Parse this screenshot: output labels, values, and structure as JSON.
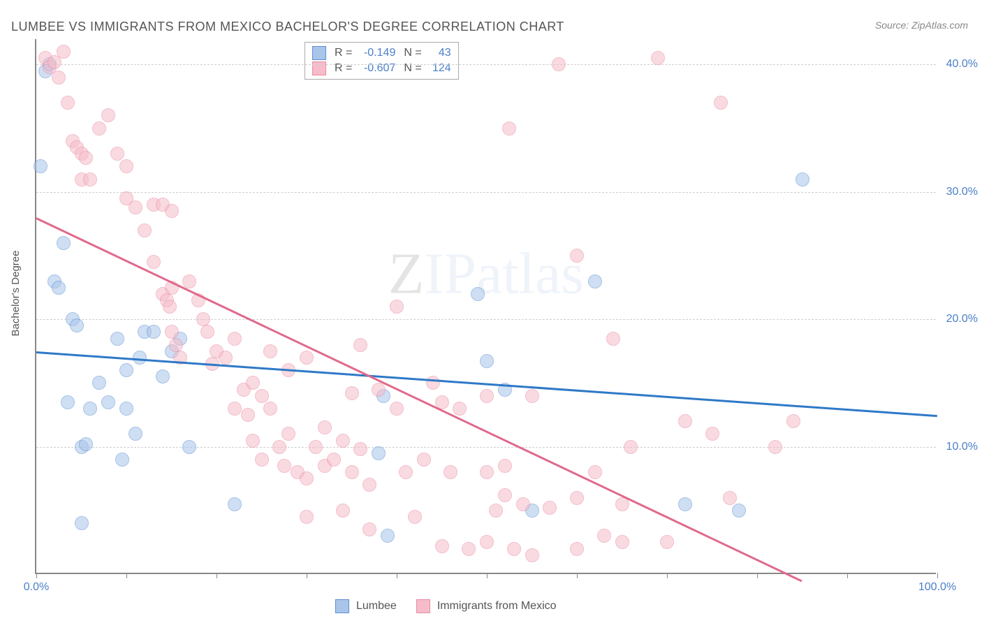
{
  "title": "LUMBEE VS IMMIGRANTS FROM MEXICO BACHELOR'S DEGREE CORRELATION CHART",
  "source": "Source: ZipAtlas.com",
  "y_axis_label": "Bachelor's Degree",
  "watermark": {
    "z": "Z",
    "ip": "IP",
    "atlas": "atlas"
  },
  "chart": {
    "type": "scatter",
    "xlim": [
      0,
      100
    ],
    "ylim": [
      0,
      42
    ],
    "x_ticks": [
      0,
      10,
      20,
      30,
      40,
      50,
      60,
      70,
      80,
      90,
      100
    ],
    "x_tick_labels": {
      "0": "0.0%",
      "100": "100.0%"
    },
    "y_gridlines": [
      10,
      20,
      30,
      40
    ],
    "y_tick_labels": [
      "10.0%",
      "20.0%",
      "30.0%",
      "40.0%"
    ],
    "background_color": "#ffffff",
    "grid_color": "#cfcfcf",
    "axis_color": "#888888",
    "marker_size": 20,
    "series": [
      {
        "name": "Lumbee",
        "color_fill": "#a9c5ea",
        "color_stroke": "#5e8fd4",
        "R": "-0.149",
        "N": "43",
        "trend": {
          "x1": 0,
          "y1": 17.5,
          "x2": 100,
          "y2": 12.5,
          "color": "#2e79c7",
          "width": 2.5
        },
        "points": [
          [
            0.5,
            32
          ],
          [
            1,
            39.5
          ],
          [
            1.5,
            40
          ],
          [
            2,
            23
          ],
          [
            2.5,
            22.5
          ],
          [
            3,
            26
          ],
          [
            3.5,
            13.5
          ],
          [
            4,
            20
          ],
          [
            4.5,
            19.5
          ],
          [
            5,
            10
          ],
          [
            5.5,
            10.2
          ],
          [
            5,
            4
          ],
          [
            6,
            13
          ],
          [
            7,
            15
          ],
          [
            8,
            13.5
          ],
          [
            9,
            18.5
          ],
          [
            9.5,
            9
          ],
          [
            10,
            16
          ],
          [
            10,
            13
          ],
          [
            11,
            11
          ],
          [
            11.5,
            17
          ],
          [
            12,
            19
          ],
          [
            13,
            19
          ],
          [
            15,
            17.5
          ],
          [
            16,
            18.5
          ],
          [
            17,
            10
          ],
          [
            14,
            15.5
          ],
          [
            22,
            5.5
          ],
          [
            38,
            9.5
          ],
          [
            38.5,
            14
          ],
          [
            39,
            3
          ],
          [
            49,
            22
          ],
          [
            50,
            16.7
          ],
          [
            52,
            14.5
          ],
          [
            55,
            5
          ],
          [
            62,
            23
          ],
          [
            72,
            5.5
          ],
          [
            78,
            5
          ],
          [
            85,
            31
          ]
        ]
      },
      {
        "name": "Immigrants from Mexico",
        "color_fill": "#f6bcc9",
        "color_stroke": "#e88ba4",
        "R": "-0.607",
        "N": "124",
        "trend": {
          "x1": 0,
          "y1": 28,
          "x2": 85,
          "y2": -0.5,
          "color": "#e06a8b",
          "width": 2.5
        },
        "points": [
          [
            1,
            40.5
          ],
          [
            1.5,
            39.8
          ],
          [
            2,
            40.2
          ],
          [
            2.5,
            39
          ],
          [
            3,
            41
          ],
          [
            3.5,
            37
          ],
          [
            4,
            34
          ],
          [
            4.5,
            33.5
          ],
          [
            5,
            33
          ],
          [
            5.5,
            32.7
          ],
          [
            5,
            31
          ],
          [
            6,
            31
          ],
          [
            7,
            35
          ],
          [
            8,
            36
          ],
          [
            9,
            33
          ],
          [
            10,
            32
          ],
          [
            10,
            29.5
          ],
          [
            11,
            28.8
          ],
          [
            12,
            27
          ],
          [
            13,
            24.5
          ],
          [
            14,
            22
          ],
          [
            14.5,
            21.5
          ],
          [
            14.8,
            21
          ],
          [
            15,
            22.5
          ],
          [
            15,
            19
          ],
          [
            15.5,
            18
          ],
          [
            16,
            17
          ],
          [
            13,
            29
          ],
          [
            14,
            29
          ],
          [
            15,
            28.5
          ],
          [
            17,
            23
          ],
          [
            18,
            21.5
          ],
          [
            18.5,
            20
          ],
          [
            19,
            19
          ],
          [
            19.5,
            16.5
          ],
          [
            20,
            17.5
          ],
          [
            21,
            17
          ],
          [
            22,
            18.5
          ],
          [
            22,
            13
          ],
          [
            23,
            14.5
          ],
          [
            23.5,
            12.5
          ],
          [
            24,
            15
          ],
          [
            24,
            10.5
          ],
          [
            25,
            14
          ],
          [
            25,
            9
          ],
          [
            26,
            17.5
          ],
          [
            26,
            13
          ],
          [
            27,
            10
          ],
          [
            27.5,
            8.5
          ],
          [
            28,
            16
          ],
          [
            28,
            11
          ],
          [
            29,
            8
          ],
          [
            30,
            17
          ],
          [
            30,
            7.5
          ],
          [
            30,
            4.5
          ],
          [
            31,
            10
          ],
          [
            32,
            11.5
          ],
          [
            32,
            8.5
          ],
          [
            33,
            9
          ],
          [
            34,
            10.5
          ],
          [
            34,
            5
          ],
          [
            35,
            8
          ],
          [
            35,
            14.2
          ],
          [
            36,
            18
          ],
          [
            36,
            9.8
          ],
          [
            37,
            7
          ],
          [
            37,
            3.5
          ],
          [
            38,
            14.5
          ],
          [
            40,
            21
          ],
          [
            40,
            13
          ],
          [
            41,
            8
          ],
          [
            42,
            4.5
          ],
          [
            43,
            9
          ],
          [
            44,
            15
          ],
          [
            45,
            13.5
          ],
          [
            45,
            2.2
          ],
          [
            46,
            8
          ],
          [
            47,
            13
          ],
          [
            48,
            2
          ],
          [
            50,
            14
          ],
          [
            50,
            8
          ],
          [
            50,
            2.5
          ],
          [
            51,
            5
          ],
          [
            52,
            8.5
          ],
          [
            52,
            6.2
          ],
          [
            52.5,
            35
          ],
          [
            53,
            2
          ],
          [
            54,
            5.5
          ],
          [
            55,
            14
          ],
          [
            55,
            1.5
          ],
          [
            57,
            5.2
          ],
          [
            58,
            40
          ],
          [
            60,
            6
          ],
          [
            60,
            2
          ],
          [
            60,
            25
          ],
          [
            62,
            8
          ],
          [
            63,
            3
          ],
          [
            64,
            18.5
          ],
          [
            65,
            2.5
          ],
          [
            65,
            5.5
          ],
          [
            66,
            10
          ],
          [
            69,
            40.5
          ],
          [
            70,
            2.5
          ],
          [
            72,
            12
          ],
          [
            75,
            11
          ],
          [
            76,
            37
          ],
          [
            77,
            6
          ],
          [
            82,
            10
          ],
          [
            84,
            12
          ]
        ]
      }
    ]
  },
  "legend_bottom": [
    {
      "label": "Lumbee",
      "fill": "#a9c5ea",
      "stroke": "#5e8fd4"
    },
    {
      "label": "Immigrants from Mexico",
      "fill": "#f6bcc9",
      "stroke": "#e88ba4"
    }
  ]
}
